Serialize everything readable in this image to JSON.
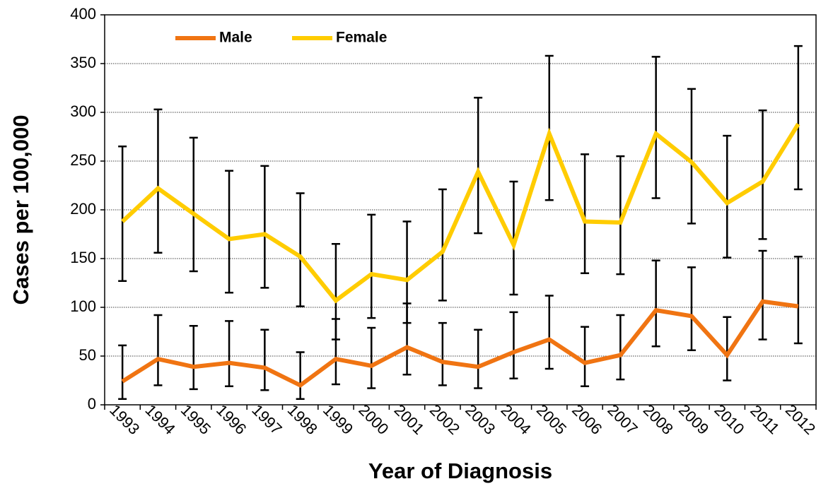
{
  "chart_data": {
    "type": "line",
    "x_label": "Year of Diagnosis",
    "y_label": "Cases per 100,000",
    "categories": [
      "1993",
      "1994",
      "1995",
      "1996",
      "1997",
      "1998",
      "1999",
      "2000",
      "2001",
      "2002",
      "2003",
      "2004",
      "2005",
      "2006",
      "2007",
      "2008",
      "2009",
      "2010",
      "2011",
      "2012"
    ],
    "series": [
      {
        "name": "Male",
        "color": "#f07412",
        "values": [
          24,
          47,
          39,
          43,
          38,
          20,
          47,
          40,
          59,
          44,
          39,
          54,
          67,
          43,
          51,
          97,
          91,
          51,
          106,
          101
        ],
        "lower": [
          6,
          20,
          16,
          19,
          15,
          6,
          21,
          17,
          31,
          20,
          17,
          27,
          37,
          19,
          26,
          60,
          56,
          25,
          67,
          63
        ],
        "upper": [
          61,
          92,
          81,
          86,
          77,
          54,
          88,
          79,
          104,
          84,
          77,
          95,
          112,
          80,
          92,
          148,
          141,
          90,
          158,
          152
        ]
      },
      {
        "name": "Female",
        "color": "#ffcc00",
        "values": [
          188,
          222,
          196,
          170,
          175,
          152,
          107,
          134,
          128,
          157,
          239,
          164,
          278,
          188,
          187,
          278,
          249,
          207,
          229,
          288
        ],
        "lower": [
          127,
          156,
          137,
          115,
          120,
          101,
          67,
          89,
          84,
          107,
          176,
          113,
          210,
          135,
          134,
          212,
          186,
          151,
          170,
          221
        ],
        "upper": [
          265,
          303,
          274,
          240,
          245,
          217,
          165,
          195,
          188,
          221,
          315,
          229,
          358,
          257,
          255,
          357,
          324,
          276,
          302,
          368
        ]
      }
    ],
    "ylim": [
      0,
      400
    ],
    "yticks": [
      0,
      50,
      100,
      150,
      200,
      250,
      300,
      350,
      400
    ],
    "grid": true,
    "legend": "upper left",
    "error_bar_color": "#000000"
  }
}
